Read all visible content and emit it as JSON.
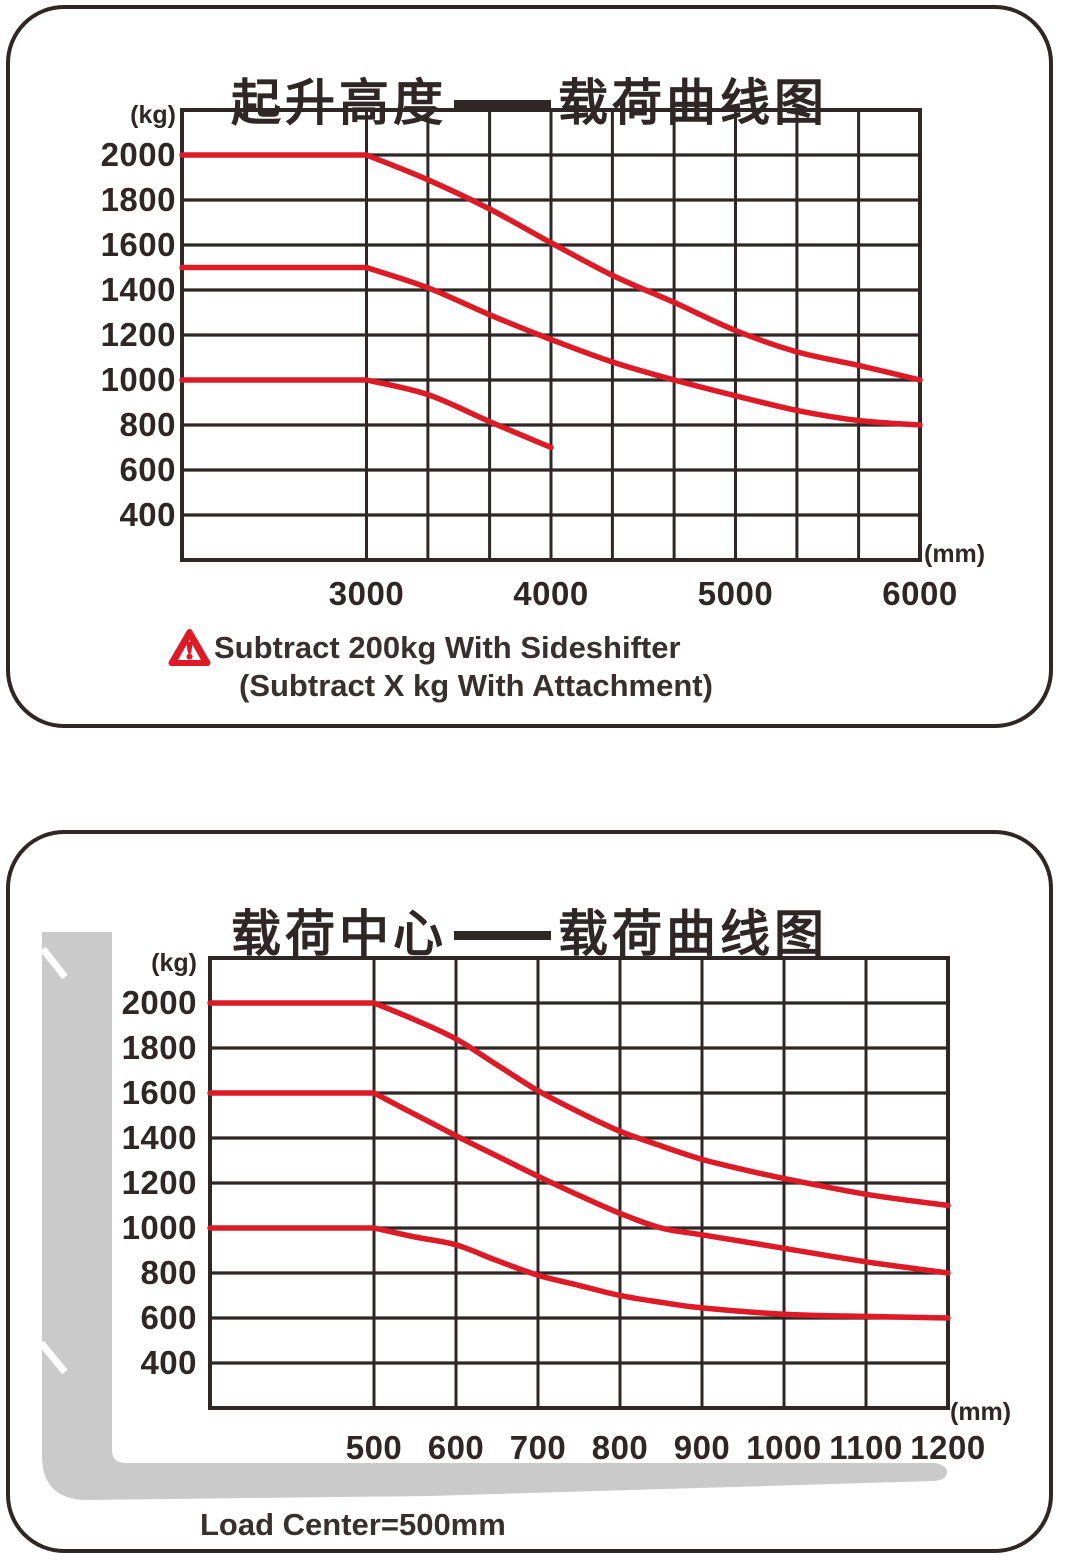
{
  "colors": {
    "curve_red": "#dd1b26",
    "line_dark": "#2e2725",
    "fork_gray": "#cacaca",
    "background": "#ffffff"
  },
  "chart_data": [
    {
      "id": "lift-height-load",
      "type": "line",
      "title": "起升高度——载荷曲线图",
      "title_left": "起升高度",
      "title_dash": "——",
      "title_right": "载荷曲线图",
      "y_unit": "(kg)",
      "x_unit": "(mm)",
      "xlim": [
        2000,
        6000
      ],
      "ylim": [
        200,
        2200
      ],
      "x_ticks": [
        3000,
        4000,
        5000,
        6000
      ],
      "y_ticks": [
        2000,
        1800,
        1600,
        1400,
        1200,
        1000,
        800,
        600,
        400
      ],
      "x_gridlines": [
        3000,
        3333,
        3667,
        4000,
        4333,
        4667,
        5000,
        5333,
        5667,
        6000
      ],
      "grid": true,
      "legend": "none",
      "series": [
        {
          "name": "capacity-2000kg",
          "color": "#dd1b26",
          "points": [
            [
              2000,
              2000
            ],
            [
              3000,
              2000
            ],
            [
              3333,
              1890
            ],
            [
              3667,
              1760
            ],
            [
              4000,
              1610
            ],
            [
              4333,
              1465
            ],
            [
              4667,
              1345
            ],
            [
              5000,
              1220
            ],
            [
              5333,
              1125
            ],
            [
              5667,
              1065
            ],
            [
              6000,
              1000
            ]
          ]
        },
        {
          "name": "capacity-1500kg",
          "color": "#dd1b26",
          "points": [
            [
              2000,
              1500
            ],
            [
              3000,
              1500
            ],
            [
              3333,
              1410
            ],
            [
              3667,
              1290
            ],
            [
              4000,
              1180
            ],
            [
              4333,
              1080
            ],
            [
              4667,
              1000
            ],
            [
              5000,
              930
            ],
            [
              5333,
              865
            ],
            [
              5667,
              820
            ],
            [
              6000,
              800
            ]
          ]
        },
        {
          "name": "capacity-1000kg",
          "color": "#dd1b26",
          "points": [
            [
              2000,
              1000
            ],
            [
              3000,
              1000
            ],
            [
              3333,
              935
            ],
            [
              3667,
              815
            ],
            [
              4000,
              700
            ]
          ]
        }
      ],
      "note_lines": [
        "Subtract 200kg With Sideshifter",
        "(Subtract X kg With Attachment)"
      ]
    },
    {
      "id": "load-center-load",
      "type": "line",
      "title": "载荷中心——载荷曲线图",
      "title_left": "载荷中心",
      "title_dash": "——",
      "title_right": "载荷曲线图",
      "y_unit": "(kg)",
      "x_unit": "(mm)",
      "xlim": [
        300,
        1200
      ],
      "ylim": [
        200,
        2200
      ],
      "x_ticks": [
        500,
        600,
        700,
        800,
        900,
        1000,
        1100,
        1200
      ],
      "y_ticks": [
        2000,
        1800,
        1600,
        1400,
        1200,
        1000,
        800,
        600,
        400
      ],
      "x_gridlines": [
        500,
        600,
        700,
        800,
        900,
        1000,
        1100,
        1200
      ],
      "grid": true,
      "legend": "none",
      "series": [
        {
          "name": "capacity-2000kg",
          "color": "#dd1b26",
          "points": [
            [
              300,
              2000
            ],
            [
              500,
              2000
            ],
            [
              550,
              1925
            ],
            [
              600,
              1840
            ],
            [
              650,
              1725
            ],
            [
              700,
              1610
            ],
            [
              750,
              1515
            ],
            [
              800,
              1430
            ],
            [
              850,
              1365
            ],
            [
              900,
              1305
            ],
            [
              950,
              1260
            ],
            [
              1000,
              1220
            ],
            [
              1100,
              1150
            ],
            [
              1200,
              1100
            ]
          ]
        },
        {
          "name": "capacity-1600kg",
          "color": "#dd1b26",
          "points": [
            [
              300,
              1600
            ],
            [
              500,
              1600
            ],
            [
              550,
              1505
            ],
            [
              600,
              1410
            ],
            [
              650,
              1320
            ],
            [
              700,
              1230
            ],
            [
              750,
              1145
            ],
            [
              800,
              1065
            ],
            [
              850,
              1000
            ],
            [
              900,
              970
            ],
            [
              1000,
              910
            ],
            [
              1100,
              850
            ],
            [
              1200,
              800
            ]
          ]
        },
        {
          "name": "capacity-1000kg",
          "color": "#dd1b26",
          "points": [
            [
              300,
              1000
            ],
            [
              500,
              1000
            ],
            [
              550,
              960
            ],
            [
              600,
              925
            ],
            [
              650,
              855
            ],
            [
              700,
              790
            ],
            [
              750,
              745
            ],
            [
              800,
              700
            ],
            [
              850,
              670
            ],
            [
              900,
              645
            ],
            [
              1000,
              617
            ],
            [
              1100,
              607
            ],
            [
              1200,
              600
            ]
          ]
        }
      ],
      "footnote": "Load Center=500mm"
    }
  ]
}
